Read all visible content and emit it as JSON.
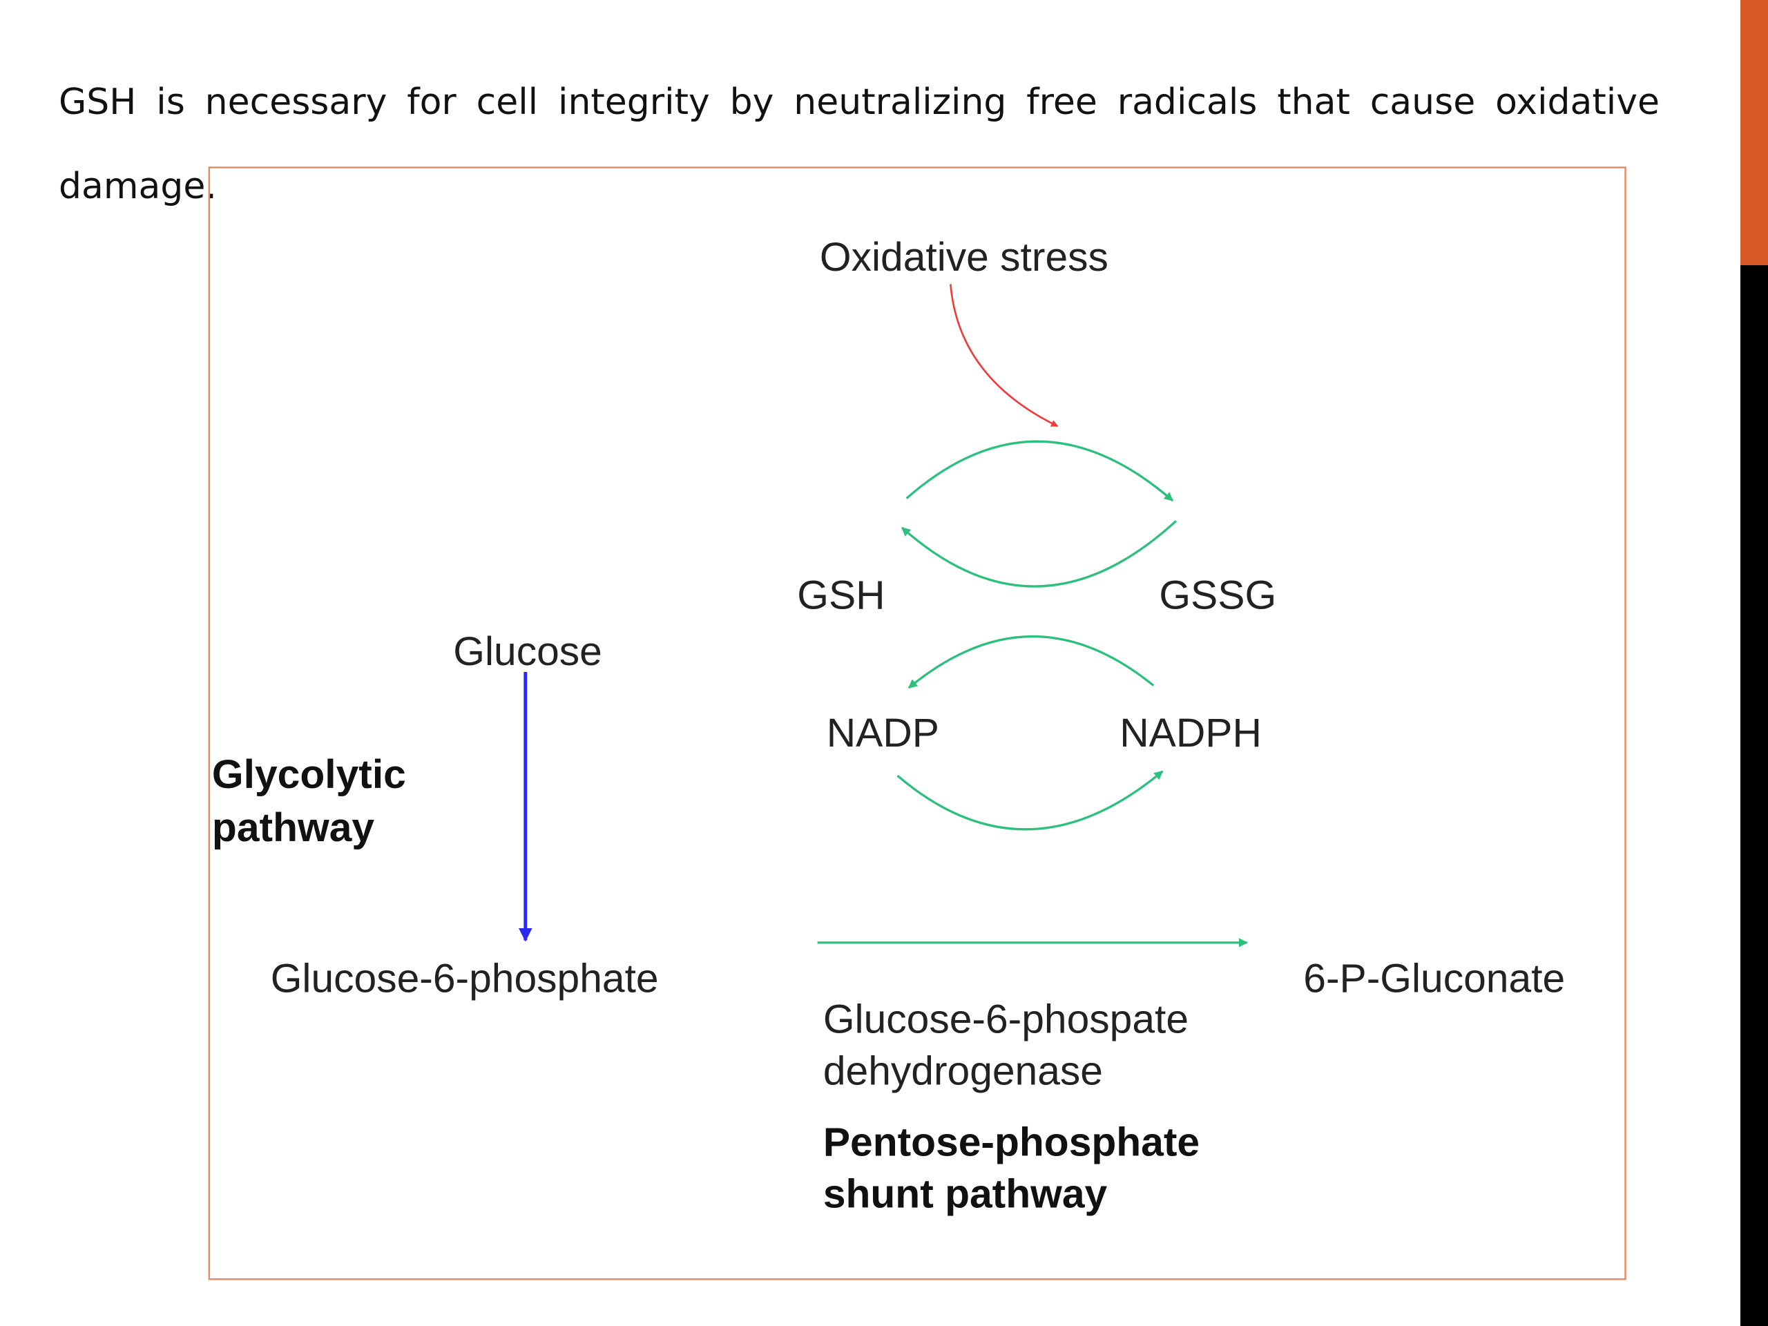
{
  "paragraph": {
    "line1": "GSH is necessary for cell integrity by neutralizing free radicals that cause oxidative",
    "line2": "damage."
  },
  "diagram": {
    "oxidative_stress": "Oxidative stress",
    "gsh": "GSH",
    "gssg": "GSSG",
    "nadp": "NADP",
    "nadph": "NADPH",
    "glucose": "Glucose",
    "glycolytic_1": "Glycolytic",
    "glycolytic_2": "pathway",
    "g6p": "Glucose-6-phosphate",
    "gluconate": "6-P-Gluconate",
    "enzyme_1": "Glucose-6-phospate",
    "enzyme_2": "dehydrogenase",
    "pentose_1": "Pentose-phosphate",
    "pentose_2": "shunt pathway"
  },
  "colors": {
    "accent": "#d95a26",
    "frame": "#e58a62",
    "green_arrow": "#2cc07c",
    "red_arrow": "#f03a3a",
    "blue_arrow": "#2a2aee"
  }
}
